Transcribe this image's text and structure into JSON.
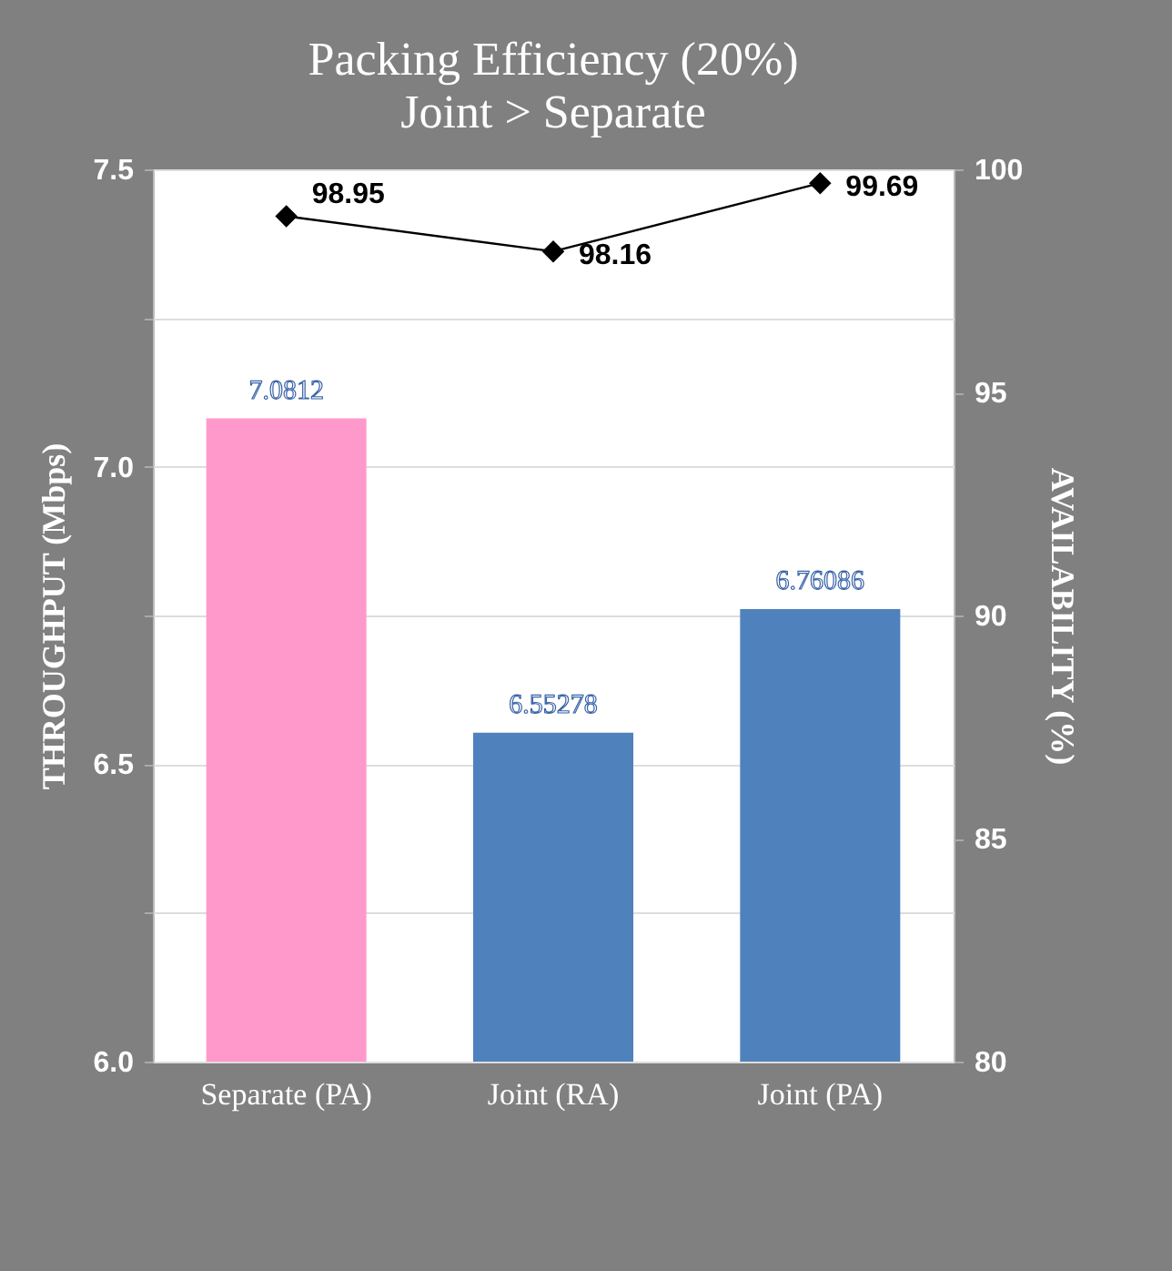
{
  "chart_data": {
    "type": "bar",
    "title": "Packing Efficiency (20%)",
    "subtitle": "Joint > Separate",
    "xlabel": null,
    "ylabel": "THROUGHPUT (Mbps)",
    "y2label": "AVAILABILITY (%)",
    "categories": [
      "Separate (PA)",
      "Joint (RA)",
      "Joint (PA)"
    ],
    "series": [
      {
        "colors": [
          "#ff99cc",
          "#4f81bd",
          "#4f81bd"
        ],
        "values": [
          7.0812,
          6.55278,
          6.76086
        ],
        "data_labels": true
      },
      {
        "type": "line",
        "axis": "y2",
        "color": "#000000",
        "marker": "diamond",
        "line_style": "solid",
        "values": [
          98.95,
          98.16,
          99.69
        ],
        "data_labels": true
      }
    ],
    "ylim": [
      6,
      7.5
    ],
    "yticks": [
      {
        "value": 6,
        "label": "6.0"
      },
      {
        "value": 6.25,
        "label": null
      },
      6.5,
      {
        "value": 6.75,
        "label": null
      },
      {
        "value": 7,
        "label": "7.0"
      },
      {
        "value": 7.25,
        "label": null
      },
      7.5
    ],
    "y2lim": [
      80,
      100
    ],
    "y2ticks": [
      80,
      85,
      90,
      95,
      100
    ],
    "grid": "y"
  }
}
